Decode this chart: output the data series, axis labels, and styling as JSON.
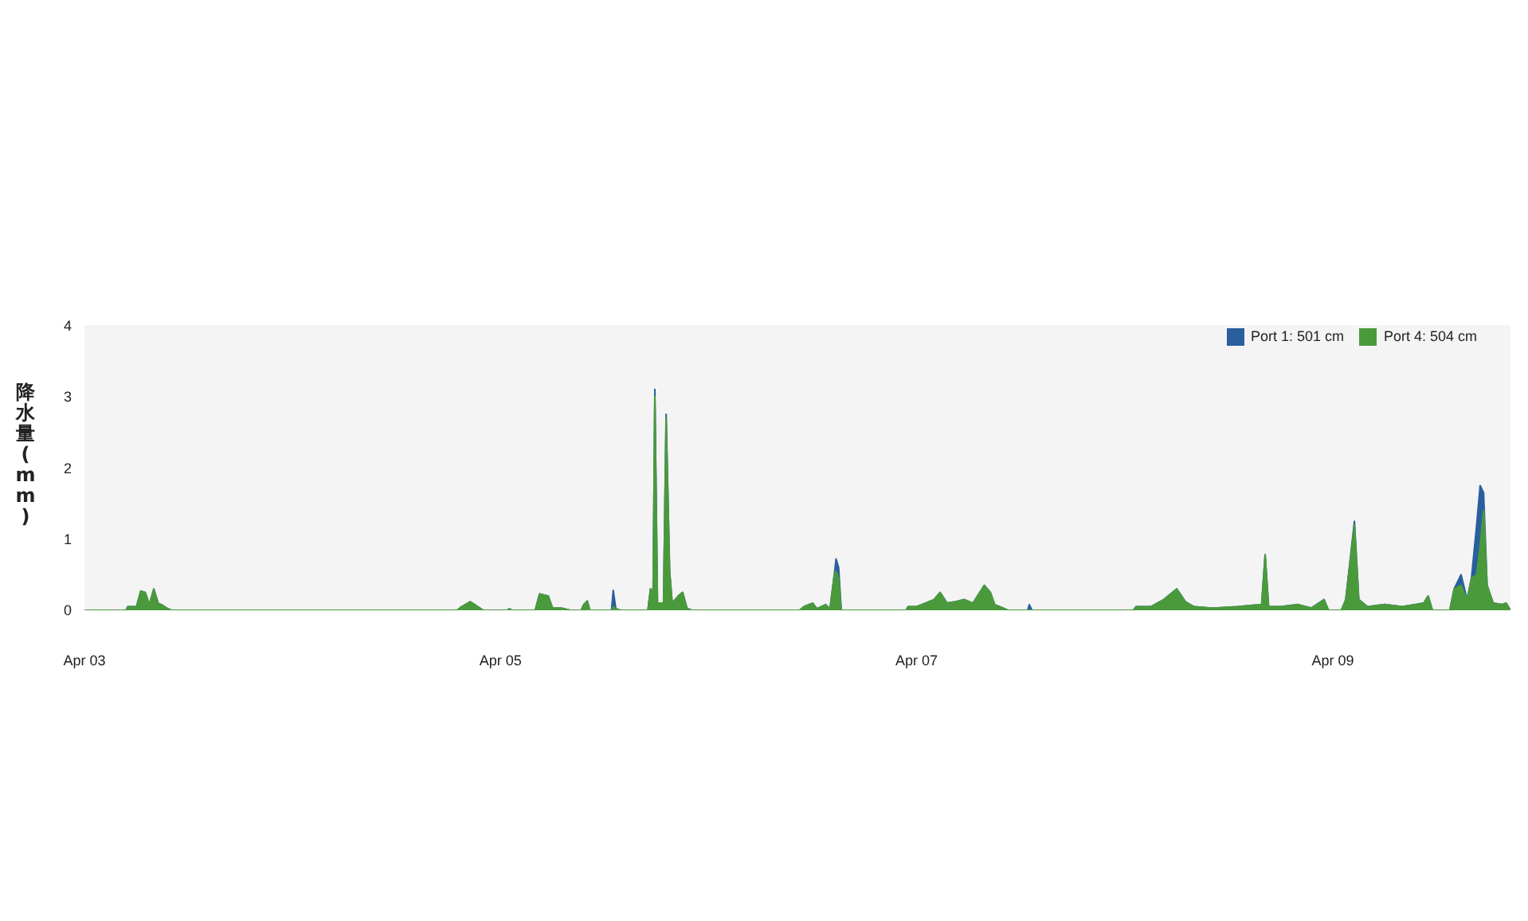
{
  "chart_data": {
    "type": "area",
    "ylabel": "降水量(mm)",
    "x": [
      "--04-03T00:00",
      "--04-03T04:48",
      "--04-03T05:00",
      "--04-03T06:00",
      "--04-03T06:30",
      "--04-03T07:00",
      "--04-03T07:30",
      "--04-03T08:00",
      "--04-03T08:30",
      "--04-03T09:00",
      "--04-03T09:30",
      "--04-03T10:00",
      "--04-04T19:00",
      "--04-04T19:30",
      "--04-04T20:30",
      "--04-04T21:00",
      "--04-04T22:00",
      "--04-05T00:48",
      "--04-05T01:00",
      "--04-05T01:18",
      "--04-05T04:00",
      "--04-05T04:30",
      "--04-05T05:30",
      "--04-05T06:00",
      "--04-05T07:00",
      "--04-05T08:00",
      "--04-05T09:18",
      "--04-05T09:36",
      "--04-05T10:00",
      "--04-05T10:18",
      "--04-05T12:48",
      "--04-05T13:00",
      "--04-05T13:18",
      "--04-05T13:48",
      "--04-05T17:00",
      "--04-05T17:18",
      "--04-05T17:36",
      "--04-05T17:48",
      "--04-05T18:06",
      "--04-05T18:48",
      "--04-05T19:06",
      "--04-05T19:30",
      "--04-05T19:48",
      "--04-05T20:30",
      "--04-05T21:00",
      "--04-05T21:30",
      "--04-05T22:00",
      "--04-06T10:30",
      "--04-06T11:00",
      "--04-06T12:00",
      "--04-06T12:30",
      "--04-06T13:30",
      "--04-06T14:00",
      "--04-06T14:30",
      "--04-06T14:42",
      "--04-06T15:00",
      "--04-06T15:18",
      "--04-06T22:48",
      "--04-06T23:00",
      "--04-07T00:00",
      "--04-07T01:00",
      "--04-07T02:00",
      "--04-07T02:42",
      "--04-07T03:30",
      "--04-07T04:30",
      "--04-07T05:30",
      "--04-07T06:30",
      "--04-07T07:48",
      "--04-07T08:30",
      "--04-07T09:00",
      "--04-07T10:00",
      "--04-07T10:30",
      "--04-07T12:48",
      "--04-07T13:00",
      "--04-07T13:18",
      "--04-08T01:00",
      "--04-08T01:18",
      "--04-08T03:00",
      "--04-08T04:30",
      "--04-08T06:00",
      "--04-08T07:00",
      "--04-08T08:00",
      "--04-08T10:00",
      "--04-08T13:00",
      "--04-08T15:48",
      "--04-08T16:12",
      "--04-08T16:36",
      "--04-08T18:00",
      "--04-08T20:00",
      "--04-08T21:30",
      "--04-08T23:00",
      "--04-08T23:30",
      "--04-09T01:00",
      "--04-09T01:30",
      "--04-09T02:30",
      "--04-09T03:00",
      "--04-09T04:00",
      "--04-09T06:00",
      "--04-09T08:00",
      "--04-09T10:30",
      "--04-09T11:00",
      "--04-09T11:30",
      "--04-09T13:30",
      "--04-09T14:00",
      "--04-09T14:48",
      "--04-09T15:30",
      "--04-09T16:00",
      "--04-09T16:36",
      "--04-09T17:00",
      "--04-09T17:24",
      "--04-09T17:48",
      "--04-09T18:30",
      "--04-09T19:30",
      "--04-09T20:00",
      "--04-09T20:30"
    ],
    "series": [
      {
        "name": "Port 1: 501 cm",
        "color": "#2a5f9e",
        "values": [
          0,
          0,
          0.05,
          0.05,
          0.27,
          0.25,
          0.08,
          0.3,
          0.1,
          0.07,
          0.03,
          0,
          0,
          0.05,
          0.12,
          0.08,
          0,
          0,
          0.02,
          0,
          0,
          0.23,
          0.2,
          0.03,
          0.03,
          0,
          0,
          0.08,
          0.13,
          0,
          0,
          0.28,
          0.02,
          0,
          0,
          0.3,
          0.25,
          3.1,
          0.1,
          0.1,
          2.75,
          0.55,
          0.1,
          0.2,
          0.25,
          0.03,
          0,
          0,
          0.05,
          0.1,
          0.02,
          0.08,
          0.02,
          0.5,
          0.72,
          0.6,
          0,
          0,
          0.05,
          0.05,
          0.1,
          0.15,
          0.25,
          0.1,
          0.12,
          0.15,
          0.1,
          0.35,
          0.25,
          0.08,
          0.03,
          0,
          0,
          0.08,
          0,
          0,
          0.05,
          0.05,
          0.15,
          0.3,
          0.12,
          0.05,
          0.03,
          0.05,
          0.08,
          0.78,
          0.05,
          0.05,
          0.08,
          0.03,
          0.15,
          0,
          0,
          0.15,
          1.25,
          0.15,
          0.05,
          0.08,
          0.05,
          0.1,
          0.2,
          0,
          0,
          0.3,
          0.5,
          0.15,
          0.45,
          1.2,
          1.75,
          1.65,
          0.35,
          0.1,
          0.08,
          0.1,
          0
        ]
      },
      {
        "name": "Port 4: 504 cm",
        "color": "#4a9a3c",
        "values": [
          0,
          0,
          0.05,
          0.05,
          0.27,
          0.25,
          0.08,
          0.3,
          0.1,
          0.07,
          0.03,
          0,
          0,
          0.05,
          0.12,
          0.08,
          0,
          0,
          0.02,
          0,
          0,
          0.23,
          0.2,
          0.03,
          0.03,
          0,
          0,
          0.08,
          0.13,
          0,
          0,
          0.05,
          0.02,
          0,
          0,
          0.3,
          0.25,
          3.0,
          0.1,
          0.1,
          2.7,
          0.55,
          0.1,
          0.2,
          0.25,
          0.03,
          0,
          0,
          0.05,
          0.1,
          0.02,
          0.08,
          0.02,
          0.5,
          0.55,
          0.45,
          0,
          0,
          0.05,
          0.05,
          0.1,
          0.15,
          0.25,
          0.1,
          0.12,
          0.15,
          0.1,
          0.35,
          0.25,
          0.08,
          0.03,
          0,
          0,
          0,
          0,
          0,
          0.05,
          0.05,
          0.15,
          0.3,
          0.12,
          0.05,
          0.03,
          0.05,
          0.08,
          0.78,
          0.05,
          0.05,
          0.08,
          0.03,
          0.15,
          0,
          0,
          0.15,
          1.2,
          0.15,
          0.05,
          0.08,
          0.05,
          0.1,
          0.2,
          0,
          0,
          0.3,
          0.35,
          0.15,
          0.45,
          0.5,
          0.9,
          1.4,
          0.35,
          0.1,
          0.08,
          0.1,
          0
        ]
      }
    ],
    "xlim": [
      "--04-03T00:00",
      "--04-09T20:30"
    ],
    "xticks": [
      {
        "value": "--04-03",
        "label": "Apr 03"
      },
      {
        "value": "--04-05",
        "label": "Apr 05"
      },
      {
        "value": "--04-07",
        "label": "Apr 07"
      },
      {
        "value": "--04-09",
        "label": "Apr 09"
      }
    ],
    "ylim": [
      0,
      4
    ],
    "yticks": [
      0,
      1,
      2,
      3,
      4
    ],
    "grid": false,
    "legend": "top right"
  }
}
